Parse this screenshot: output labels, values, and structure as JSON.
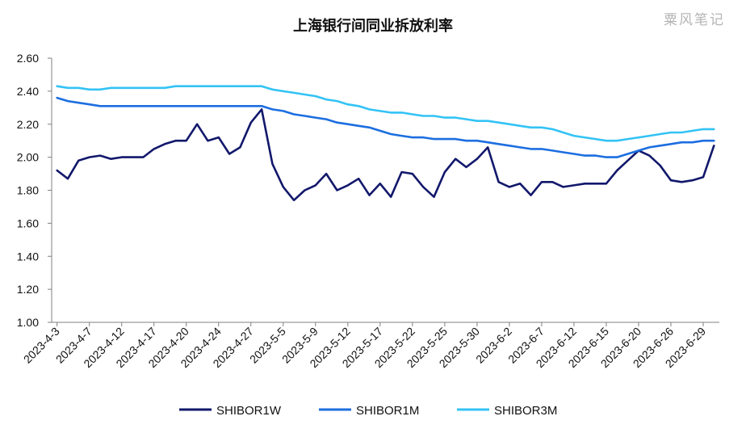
{
  "title": "上海银行间同业拆放利率",
  "watermark": "粟风笔记",
  "chart_data": {
    "type": "line",
    "title": "上海银行间同业拆放利率",
    "xlabel": "",
    "ylabel": "",
    "ylim": [
      1.0,
      2.6
    ],
    "y_ticks": [
      "1.00",
      "1.20",
      "1.40",
      "1.60",
      "1.80",
      "2.00",
      "2.20",
      "2.40",
      "2.60"
    ],
    "x_tick_labels": [
      "2023-4-3",
      "2023-4-7",
      "2023-4-12",
      "2023-4-17",
      "2023-4-20",
      "2023-4-24",
      "2023-4-27",
      "2023-5-5",
      "2023-5-9",
      "2023-5-12",
      "2023-5-17",
      "2023-5-22",
      "2023-5-25",
      "2023-5-30",
      "2023-6-2",
      "2023-6-7",
      "2023-6-12",
      "2023-6-15",
      "2023-6-20",
      "2023-6-26",
      "2023-6-29"
    ],
    "x_tick_every": 3,
    "grid": false,
    "legend": "bottom",
    "n_points": 62,
    "series": [
      {
        "name": "SHIBOR1W",
        "color": "#12186b",
        "values": [
          1.92,
          1.87,
          1.98,
          2.0,
          2.01,
          1.99,
          2.0,
          2.0,
          2.0,
          2.05,
          2.08,
          2.1,
          2.1,
          2.2,
          2.1,
          2.12,
          2.02,
          2.06,
          2.21,
          2.29,
          1.96,
          1.82,
          1.74,
          1.8,
          1.83,
          1.9,
          1.8,
          1.83,
          1.87,
          1.77,
          1.84,
          1.76,
          1.91,
          1.9,
          1.82,
          1.76,
          1.91,
          1.99,
          1.94,
          1.99,
          2.06,
          1.85,
          1.82,
          1.84,
          1.77,
          1.85,
          1.85,
          1.82,
          1.83,
          1.84,
          1.84,
          1.84,
          1.92,
          1.98,
          2.04,
          2.01,
          1.95,
          1.86,
          1.85,
          1.86,
          1.88,
          2.07
        ]
      },
      {
        "name": "SHIBOR1M",
        "color": "#1c6ee0",
        "values": [
          2.36,
          2.34,
          2.33,
          2.32,
          2.31,
          2.31,
          2.31,
          2.31,
          2.31,
          2.31,
          2.31,
          2.31,
          2.31,
          2.31,
          2.31,
          2.31,
          2.31,
          2.31,
          2.31,
          2.31,
          2.29,
          2.28,
          2.26,
          2.25,
          2.24,
          2.23,
          2.21,
          2.2,
          2.19,
          2.18,
          2.16,
          2.14,
          2.13,
          2.12,
          2.12,
          2.11,
          2.11,
          2.11,
          2.1,
          2.1,
          2.09,
          2.08,
          2.07,
          2.06,
          2.05,
          2.05,
          2.04,
          2.03,
          2.02,
          2.01,
          2.01,
          2.0,
          2.0,
          2.02,
          2.04,
          2.06,
          2.07,
          2.08,
          2.09,
          2.09,
          2.1,
          2.1
        ]
      },
      {
        "name": "SHIBOR3M",
        "color": "#33c3f5",
        "values": [
          2.43,
          2.42,
          2.42,
          2.41,
          2.41,
          2.42,
          2.42,
          2.42,
          2.42,
          2.42,
          2.42,
          2.43,
          2.43,
          2.43,
          2.43,
          2.43,
          2.43,
          2.43,
          2.43,
          2.43,
          2.41,
          2.4,
          2.39,
          2.38,
          2.37,
          2.35,
          2.34,
          2.32,
          2.31,
          2.29,
          2.28,
          2.27,
          2.27,
          2.26,
          2.25,
          2.25,
          2.24,
          2.24,
          2.23,
          2.22,
          2.22,
          2.21,
          2.2,
          2.19,
          2.18,
          2.18,
          2.17,
          2.15,
          2.13,
          2.12,
          2.11,
          2.1,
          2.1,
          2.11,
          2.12,
          2.13,
          2.14,
          2.15,
          2.15,
          2.16,
          2.17,
          2.17
        ]
      }
    ]
  }
}
